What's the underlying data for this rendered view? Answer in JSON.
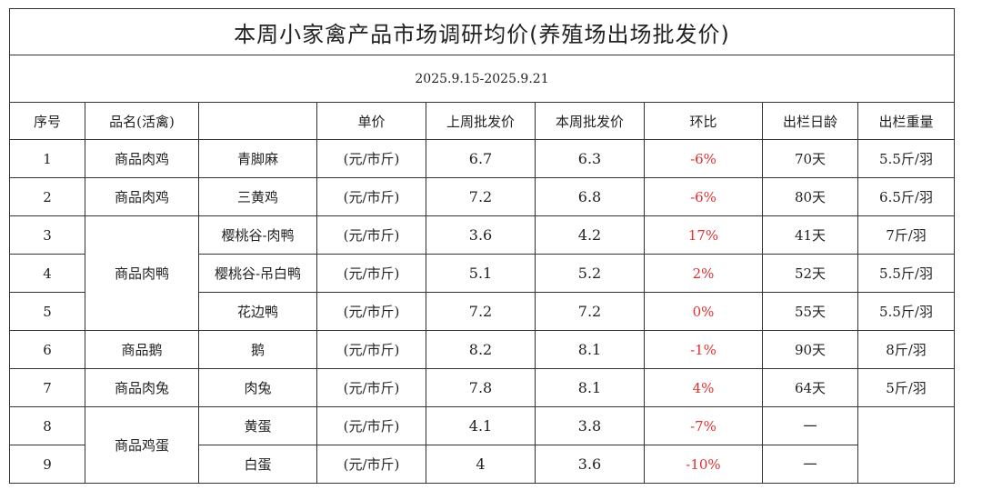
{
  "title": "本周小家禽产品市场调研均价(养殖场出场批发价)",
  "date_range": "2025.9.15-2025.9.21",
  "headers": {
    "index": "序号",
    "name": "品名(活禽)",
    "variety": "",
    "unit": "单价",
    "last_week": "上周批发价",
    "this_week": "本周批发价",
    "change": "环比",
    "age": "出栏日龄",
    "weight": "出栏重量"
  },
  "groups": {
    "g1": "商品肉鸡",
    "g2": "商品肉鸡",
    "g3": "商品肉鸭",
    "g4": "商品鹅",
    "g5": "商品肉兔",
    "g6": "商品鸡蛋"
  },
  "rows": [
    {
      "index": "1",
      "variety": "青脚麻",
      "unit": "(元/市斤)",
      "last_week": "6.7",
      "this_week": "6.3",
      "change": "-6%",
      "age": "70天",
      "weight": "5.5斤/羽"
    },
    {
      "index": "2",
      "variety": "三黄鸡",
      "unit": "(元/市斤)",
      "last_week": "7.2",
      "this_week": "6.8",
      "change": "-6%",
      "age": "80天",
      "weight": "6.5斤/羽"
    },
    {
      "index": "3",
      "variety": "樱桃谷-肉鸭",
      "unit": "(元/市斤)",
      "last_week": "3.6",
      "this_week": "4.2",
      "change": "17%",
      "age": "41天",
      "weight": "7斤/羽"
    },
    {
      "index": "4",
      "variety": "樱桃谷-吊白鸭",
      "unit": "(元/市斤)",
      "last_week": "5.1",
      "this_week": "5.2",
      "change": "2%",
      "age": "52天",
      "weight": "5.5斤/羽"
    },
    {
      "index": "5",
      "variety": "花边鸭",
      "unit": "(元/市斤)",
      "last_week": "7.2",
      "this_week": "7.2",
      "change": "0%",
      "age": "55天",
      "weight": "5.5斤/羽"
    },
    {
      "index": "6",
      "variety": "鹅",
      "unit": "(元/市斤)",
      "last_week": "8.2",
      "this_week": "8.1",
      "change": "-1%",
      "age": "90天",
      "weight": "8斤/羽"
    },
    {
      "index": "7",
      "variety": "肉兔",
      "unit": "(元/市斤)",
      "last_week": "7.8",
      "this_week": "8.1",
      "change": "4%",
      "age": "64天",
      "weight": "5斤/羽"
    },
    {
      "index": "8",
      "variety": "黄蛋",
      "unit": "(元/市斤)",
      "last_week": "4.1",
      "this_week": "3.8",
      "change": "-7%",
      "age": "一",
      "weight": ""
    },
    {
      "index": "9",
      "variety": "白蛋",
      "unit": "(元/市斤)",
      "last_week": "4",
      "this_week": "3.6",
      "change": "-10%",
      "age": "一",
      "weight": ""
    }
  ],
  "colors": {
    "change_text": "#e03030",
    "border": "#333333"
  }
}
